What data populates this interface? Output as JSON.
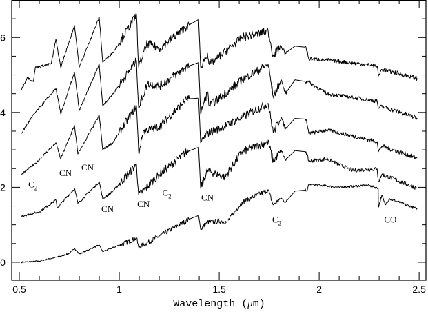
{
  "chart_data": {
    "type": "line",
    "title": "",
    "xlabel": "Wavelength (μm)",
    "xlabel_parts": {
      "pre": "Wavelength (",
      "mu": "μ",
      "post": "m)"
    },
    "ylabel": "",
    "xlim": [
      0.462,
      2.534
    ],
    "ylim": [
      -0.48,
      7.0
    ],
    "x_ticks": [
      0.5,
      1,
      1.5,
      2,
      2.5
    ],
    "x_tick_labels": [
      "0.5",
      "1",
      "1.5",
      "2",
      "2.5"
    ],
    "x_minor_step": 0.1,
    "y_ticks": [
      0,
      2,
      4,
      6
    ],
    "y_tick_labels": [
      "0",
      "2",
      "4",
      "6"
    ],
    "y_minor_step": 0.5,
    "grid": false,
    "line_color": "#000000",
    "series": [
      {
        "points": [
          [
            0.51,
            0.0
          ],
          [
            0.6,
            0.03
          ],
          [
            0.7,
            0.15
          ],
          [
            0.752,
            0.24
          ],
          [
            0.776,
            0.37
          ],
          [
            0.8,
            0.22
          ],
          [
            0.9,
            0.46
          ],
          [
            0.917,
            0.28
          ],
          [
            1.086,
            0.64
          ],
          [
            1.097,
            0.4
          ],
          [
            1.2,
            0.7
          ],
          [
            1.35,
            1.15
          ],
          [
            1.397,
            1.25
          ],
          [
            1.407,
            0.88
          ],
          [
            1.441,
            1.07
          ],
          [
            1.51,
            1.1
          ],
          [
            1.538,
            1.07
          ],
          [
            1.614,
            1.6
          ],
          [
            1.745,
            1.93
          ],
          [
            1.77,
            1.53
          ],
          [
            1.81,
            1.71
          ],
          [
            1.831,
            1.6
          ],
          [
            1.879,
            1.9
          ],
          [
            1.941,
            1.93
          ],
          [
            1.948,
            2.08
          ],
          [
            2.1,
            2.0
          ],
          [
            2.245,
            2.06
          ],
          [
            2.295,
            1.97
          ],
          [
            2.296,
            1.47
          ],
          [
            2.313,
            1.79
          ],
          [
            2.33,
            1.53
          ],
          [
            2.35,
            1.7
          ],
          [
            2.49,
            1.42
          ]
        ]
      },
      {
        "points": [
          [
            0.51,
            1.23
          ],
          [
            0.6,
            1.35
          ],
          [
            0.683,
            1.66
          ],
          [
            0.69,
            1.45
          ],
          [
            0.776,
            1.97
          ],
          [
            0.793,
            1.57
          ],
          [
            0.9,
            2.15
          ],
          [
            0.917,
            1.69
          ],
          [
            0.969,
            1.9
          ],
          [
            1.086,
            2.61
          ],
          [
            1.097,
            1.79
          ],
          [
            1.131,
            1.97
          ],
          [
            1.2,
            2.34
          ],
          [
            1.338,
            2.95
          ],
          [
            1.397,
            3.07
          ],
          [
            1.407,
            1.97
          ],
          [
            1.441,
            2.45
          ],
          [
            1.527,
            2.27
          ],
          [
            1.614,
            2.95
          ],
          [
            1.745,
            3.22
          ],
          [
            1.77,
            2.7
          ],
          [
            1.81,
            2.98
          ],
          [
            1.831,
            2.73
          ],
          [
            1.879,
            2.98
          ],
          [
            1.934,
            2.95
          ],
          [
            1.948,
            2.7
          ],
          [
            2.038,
            2.76
          ],
          [
            2.166,
            2.45
          ],
          [
            2.29,
            2.49
          ],
          [
            2.296,
            2.15
          ],
          [
            2.313,
            2.34
          ],
          [
            2.486,
            1.99
          ]
        ]
      },
      {
        "points": [
          [
            0.51,
            2.34
          ],
          [
            0.58,
            2.63
          ],
          [
            0.683,
            3.19
          ],
          [
            0.707,
            2.76
          ],
          [
            0.776,
            3.65
          ],
          [
            0.793,
            2.89
          ],
          [
            0.9,
            3.92
          ],
          [
            0.917,
            3.0
          ],
          [
            0.969,
            3.2
          ],
          [
            1.086,
            4.18
          ],
          [
            1.097,
            2.91
          ],
          [
            1.12,
            3.5
          ],
          [
            1.2,
            3.62
          ],
          [
            1.338,
            4.36
          ],
          [
            1.397,
            4.38
          ],
          [
            1.407,
            3.19
          ],
          [
            1.441,
            3.44
          ],
          [
            1.51,
            3.59
          ],
          [
            1.614,
            3.87
          ],
          [
            1.745,
            4.24
          ],
          [
            1.77,
            3.47
          ],
          [
            1.81,
            3.87
          ],
          [
            1.831,
            3.56
          ],
          [
            1.879,
            3.84
          ],
          [
            1.934,
            3.82
          ],
          [
            1.948,
            3.44
          ],
          [
            2.038,
            3.53
          ],
          [
            2.29,
            3.22
          ],
          [
            2.296,
            2.95
          ],
          [
            2.313,
            3.1
          ],
          [
            2.49,
            2.78
          ]
        ]
      },
      {
        "points": [
          [
            0.51,
            3.44
          ],
          [
            0.57,
            3.93
          ],
          [
            0.683,
            4.64
          ],
          [
            0.707,
            3.96
          ],
          [
            0.776,
            5.06
          ],
          [
            0.8,
            4.05
          ],
          [
            0.9,
            5.28
          ],
          [
            0.917,
            4.18
          ],
          [
            0.969,
            4.5
          ],
          [
            1.086,
            5.38
          ],
          [
            1.097,
            4.11
          ],
          [
            1.14,
            4.77
          ],
          [
            1.2,
            4.7
          ],
          [
            1.338,
            5.22
          ],
          [
            1.397,
            5.33
          ],
          [
            1.407,
            3.96
          ],
          [
            1.441,
            4.55
          ],
          [
            1.45,
            4.18
          ],
          [
            1.51,
            4.42
          ],
          [
            1.614,
            4.87
          ],
          [
            1.745,
            5.28
          ],
          [
            1.77,
            4.42
          ],
          [
            1.81,
            4.87
          ],
          [
            1.831,
            4.5
          ],
          [
            1.879,
            4.87
          ],
          [
            1.948,
            4.81
          ],
          [
            2.038,
            4.5
          ],
          [
            2.29,
            4.3
          ],
          [
            2.296,
            4.11
          ],
          [
            2.313,
            4.16
          ],
          [
            2.49,
            3.85
          ]
        ]
      },
      {
        "points": [
          [
            0.51,
            4.6
          ],
          [
            0.54,
            4.94
          ],
          [
            0.57,
            4.82
          ],
          [
            0.58,
            5.2
          ],
          [
            0.66,
            5.3
          ],
          [
            0.683,
            5.95
          ],
          [
            0.707,
            5.2
          ],
          [
            0.776,
            6.32
          ],
          [
            0.8,
            5.21
          ],
          [
            0.9,
            6.54
          ],
          [
            0.917,
            5.34
          ],
          [
            0.969,
            5.6
          ],
          [
            1.086,
            6.6
          ],
          [
            1.097,
            5.21
          ],
          [
            1.14,
            5.85
          ],
          [
            1.2,
            5.7
          ],
          [
            1.338,
            6.3
          ],
          [
            1.397,
            6.48
          ],
          [
            1.407,
            5.21
          ],
          [
            1.441,
            5.58
          ],
          [
            1.45,
            5.28
          ],
          [
            1.51,
            5.54
          ],
          [
            1.614,
            6.0
          ],
          [
            1.745,
            6.17
          ],
          [
            1.77,
            5.52
          ],
          [
            1.81,
            5.77
          ],
          [
            1.831,
            5.58
          ],
          [
            1.879,
            5.77
          ],
          [
            1.934,
            5.74
          ],
          [
            1.948,
            5.43
          ],
          [
            2.038,
            5.4
          ],
          [
            2.29,
            5.24
          ],
          [
            2.296,
            4.97
          ],
          [
            2.313,
            5.15
          ],
          [
            2.49,
            4.91
          ]
        ]
      }
    ],
    "annotations": [
      {
        "text": "C",
        "sub": "2",
        "x": 0.545,
        "y": 2.0
      },
      {
        "text": "CN",
        "sub": "",
        "x": 0.7,
        "y": 2.3
      },
      {
        "text": "CN",
        "sub": "",
        "x": 0.81,
        "y": 2.45
      },
      {
        "text": "CN",
        "sub": "",
        "x": 0.91,
        "y": 1.34
      },
      {
        "text": "CN",
        "sub": "",
        "x": 1.09,
        "y": 1.47
      },
      {
        "text": "C",
        "sub": "2",
        "x": 1.215,
        "y": 1.78
      },
      {
        "text": "CN",
        "sub": "",
        "x": 1.41,
        "y": 1.65
      },
      {
        "text": "C",
        "sub": "2",
        "x": 1.765,
        "y": 1.06
      },
      {
        "text": "CO",
        "sub": "",
        "x": 2.325,
        "y": 1.06
      }
    ]
  }
}
